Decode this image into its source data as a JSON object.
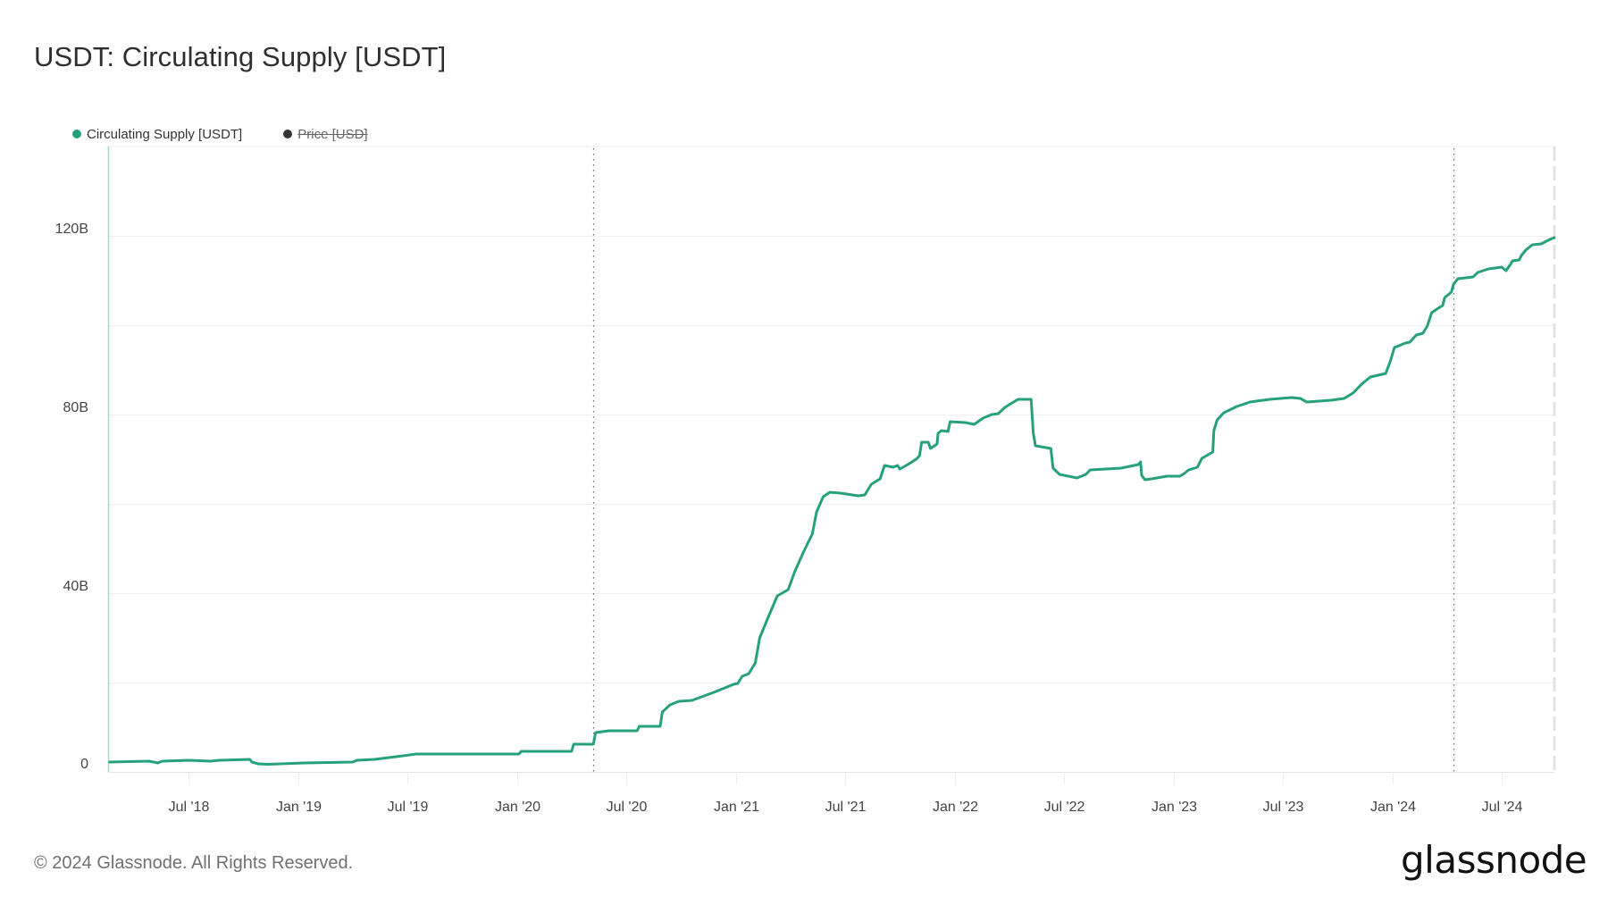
{
  "title": "USDT: Circulating Supply [USDT]",
  "legend": [
    {
      "label": "Circulating Supply [USDT]",
      "color": "#26a17b",
      "hidden": false
    },
    {
      "label": "Price [USD]",
      "color": "#333333",
      "hidden": true
    }
  ],
  "footer": {
    "copyright": "© 2024 Glassnode. All Rights Reserved.",
    "brand": "glassnode"
  },
  "colors": {
    "series": "#26a17b",
    "grid": "#efefef",
    "left_axis": "#a8dcc9",
    "marker_line": "#666666",
    "end_dash": "#e2e2e2"
  },
  "chart_data": {
    "type": "line",
    "title": "USDT: Circulating Supply [USDT]",
    "xlabel": "",
    "ylabel": "",
    "x_ticks": [
      "Jul '18",
      "Jan '19",
      "Jul '19",
      "Jan '20",
      "Jul '20",
      "Jan '21",
      "Jul '21",
      "Jan '22",
      "Jul '22",
      "Jan '23",
      "Jul '23",
      "Jan '24",
      "Jul '24"
    ],
    "x_tick_positions": [
      2018.5,
      2019.0,
      2019.5,
      2020.0,
      2020.5,
      2021.0,
      2021.5,
      2022.0,
      2022.5,
      2023.0,
      2023.5,
      2024.0,
      2024.5
    ],
    "y_ticks": [
      "0",
      "40B",
      "80B",
      "120B"
    ],
    "y_tick_values": [
      0,
      40,
      80,
      120
    ],
    "y_gridlines": [
      0,
      20,
      40,
      60,
      80,
      100,
      120
    ],
    "ylim": [
      0,
      139.5
    ],
    "xlim": [
      2018.13,
      2024.74
    ],
    "grid": true,
    "legend_position": "top-left",
    "vertical_markers": [
      2020.35,
      2024.28
    ],
    "series": [
      {
        "name": "Circulating Supply [USDT]",
        "unit": "billion USDT",
        "points": [
          [
            2018.14,
            2.2
          ],
          [
            2018.32,
            2.4
          ],
          [
            2018.36,
            2.0
          ],
          [
            2018.38,
            2.4
          ],
          [
            2018.5,
            2.6
          ],
          [
            2018.6,
            2.4
          ],
          [
            2018.64,
            2.6
          ],
          [
            2018.78,
            2.8
          ],
          [
            2018.79,
            2.2
          ],
          [
            2018.82,
            1.8
          ],
          [
            2018.86,
            1.7
          ],
          [
            2019.03,
            2.0
          ],
          [
            2019.25,
            2.2
          ],
          [
            2019.27,
            2.6
          ],
          [
            2019.35,
            2.8
          ],
          [
            2019.48,
            3.6
          ],
          [
            2019.54,
            4.0
          ],
          [
            2020.01,
            4.0
          ],
          [
            2020.02,
            4.6
          ],
          [
            2020.25,
            4.6
          ],
          [
            2020.26,
            6.2
          ],
          [
            2020.35,
            6.2
          ],
          [
            2020.36,
            8.8
          ],
          [
            2020.42,
            9.2
          ],
          [
            2020.55,
            9.2
          ],
          [
            2020.56,
            10.2
          ],
          [
            2020.655,
            10.2
          ],
          [
            2020.665,
            13.4
          ],
          [
            2020.7,
            15.0
          ],
          [
            2020.74,
            15.8
          ],
          [
            2020.8,
            16.0
          ],
          [
            2020.9,
            17.8
          ],
          [
            2020.99,
            19.6
          ],
          [
            2021.01,
            19.8
          ],
          [
            2021.03,
            21.4
          ],
          [
            2021.06,
            22.0
          ],
          [
            2021.09,
            24.4
          ],
          [
            2021.11,
            30.0
          ],
          [
            2021.15,
            34.8
          ],
          [
            2021.19,
            39.4
          ],
          [
            2021.24,
            40.8
          ],
          [
            2021.27,
            44.8
          ],
          [
            2021.31,
            49.2
          ],
          [
            2021.35,
            53.2
          ],
          [
            2021.37,
            58.2
          ],
          [
            2021.4,
            61.6
          ],
          [
            2021.43,
            62.6
          ],
          [
            2021.48,
            62.4
          ],
          [
            2021.56,
            61.8
          ],
          [
            2021.59,
            62.0
          ],
          [
            2021.62,
            64.4
          ],
          [
            2021.66,
            65.6
          ],
          [
            2021.68,
            68.6
          ],
          [
            2021.72,
            68.2
          ],
          [
            2021.74,
            68.6
          ],
          [
            2021.75,
            67.8
          ],
          [
            2021.8,
            69.2
          ],
          [
            2021.83,
            70.2
          ],
          [
            2021.84,
            70.8
          ],
          [
            2021.85,
            73.8
          ],
          [
            2021.88,
            73.8
          ],
          [
            2021.89,
            72.4
          ],
          [
            2021.92,
            73.4
          ],
          [
            2021.925,
            75.8
          ],
          [
            2021.94,
            76.4
          ],
          [
            2021.97,
            76.2
          ],
          [
            2021.98,
            78.4
          ],
          [
            2022.05,
            78.2
          ],
          [
            2022.09,
            77.8
          ],
          [
            2022.13,
            79.2
          ],
          [
            2022.17,
            80.0
          ],
          [
            2022.2,
            80.2
          ],
          [
            2022.23,
            81.6
          ],
          [
            2022.27,
            82.8
          ],
          [
            2022.29,
            83.4
          ],
          [
            2022.35,
            83.4
          ],
          [
            2022.36,
            75.8
          ],
          [
            2022.37,
            73.0
          ],
          [
            2022.44,
            72.4
          ],
          [
            2022.45,
            68.0
          ],
          [
            2022.48,
            66.6
          ],
          [
            2022.56,
            65.8
          ],
          [
            2022.6,
            66.6
          ],
          [
            2022.62,
            67.6
          ],
          [
            2022.76,
            68.0
          ],
          [
            2022.8,
            68.4
          ],
          [
            2022.84,
            68.8
          ],
          [
            2022.85,
            69.4
          ],
          [
            2022.855,
            66.4
          ],
          [
            2022.87,
            65.4
          ],
          [
            2022.9,
            65.6
          ],
          [
            2022.97,
            66.2
          ],
          [
            2023.03,
            66.2
          ],
          [
            2023.05,
            66.8
          ],
          [
            2023.07,
            67.6
          ],
          [
            2023.11,
            68.2
          ],
          [
            2023.13,
            70.2
          ],
          [
            2023.18,
            71.6
          ],
          [
            2023.185,
            76.4
          ],
          [
            2023.2,
            78.8
          ],
          [
            2023.23,
            80.4
          ],
          [
            2023.29,
            81.8
          ],
          [
            2023.35,
            82.8
          ],
          [
            2023.44,
            83.4
          ],
          [
            2023.54,
            83.8
          ],
          [
            2023.58,
            83.6
          ],
          [
            2023.61,
            82.8
          ],
          [
            2023.72,
            83.2
          ],
          [
            2023.78,
            83.6
          ],
          [
            2023.82,
            84.8
          ],
          [
            2023.86,
            86.8
          ],
          [
            2023.9,
            88.4
          ],
          [
            2023.97,
            89.2
          ],
          [
            2023.99,
            91.8
          ],
          [
            2024.01,
            95.0
          ],
          [
            2024.06,
            96.0
          ],
          [
            2024.08,
            96.2
          ],
          [
            2024.11,
            97.8
          ],
          [
            2024.14,
            98.2
          ],
          [
            2024.16,
            99.8
          ],
          [
            2024.18,
            102.8
          ],
          [
            2024.21,
            103.8
          ],
          [
            2024.23,
            104.4
          ],
          [
            2024.24,
            106.2
          ],
          [
            2024.27,
            107.4
          ],
          [
            2024.28,
            109.2
          ],
          [
            2024.3,
            110.4
          ],
          [
            2024.37,
            110.8
          ],
          [
            2024.39,
            111.8
          ],
          [
            2024.44,
            112.6
          ],
          [
            2024.5,
            113.0
          ],
          [
            2024.52,
            112.2
          ],
          [
            2024.54,
            113.6
          ],
          [
            2024.55,
            114.4
          ],
          [
            2024.58,
            114.6
          ],
          [
            2024.59,
            115.6
          ],
          [
            2024.61,
            116.8
          ],
          [
            2024.64,
            118.0
          ],
          [
            2024.68,
            118.2
          ],
          [
            2024.72,
            119.2
          ],
          [
            2024.74,
            119.6
          ]
        ]
      },
      {
        "name": "Price [USD]",
        "hidden": true,
        "points": []
      }
    ]
  }
}
